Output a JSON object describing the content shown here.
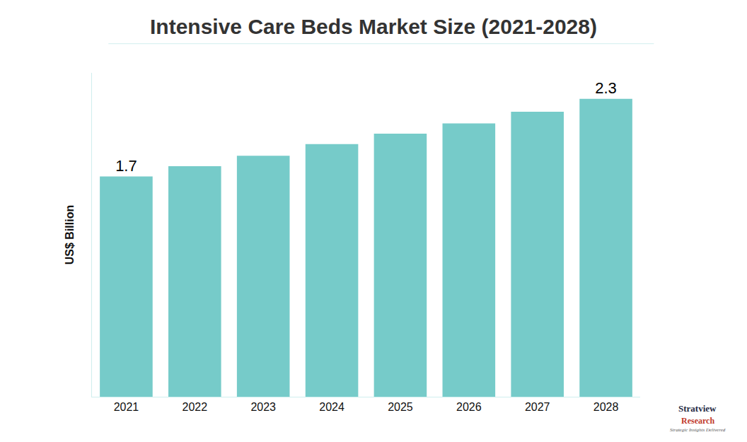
{
  "chart_data": {
    "type": "bar",
    "title": "Intensive Care Beds Market Size (2021-2028)",
    "y_label": "US$ Billion",
    "categories": [
      "2021",
      "2022",
      "2023",
      "2024",
      "2025",
      "2026",
      "2027",
      "2028"
    ],
    "values": [
      1.7,
      1.78,
      1.86,
      1.95,
      2.03,
      2.11,
      2.2,
      2.3
    ],
    "value_labels": [
      "1.7",
      null,
      null,
      null,
      null,
      null,
      null,
      "2.3"
    ],
    "data_labels": true,
    "color": "#76cbc9",
    "ylim": [
      0,
      2.5
    ],
    "yticks": [],
    "grid": false,
    "tick_labels": "x",
    "annotations": [
      "Stratview",
      "Research",
      "Strategic Insights Delivered"
    ]
  }
}
